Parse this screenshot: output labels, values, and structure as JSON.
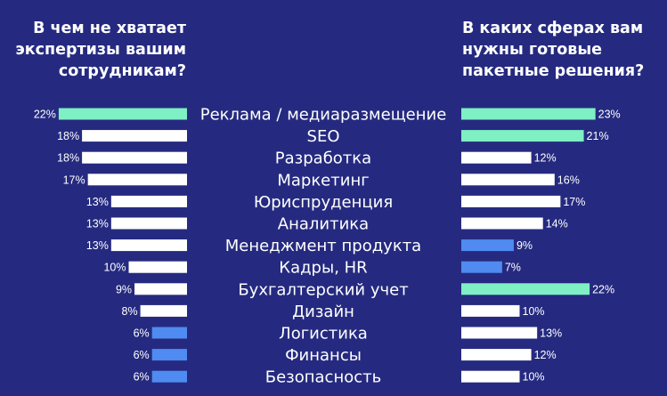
{
  "chart_data": {
    "type": "bar",
    "categories": [
      "Реклама / медиаразмещение",
      "SEO",
      "Разработка",
      "Маркетинг",
      "Юриспруденция",
      "Аналитика",
      "Менеджмент продукта",
      "Кадры, HR",
      "Бухгалтерский учет",
      "Дизайн",
      "Логистика",
      "Финансы",
      "Безопасность"
    ],
    "series": [
      {
        "title": "В чем не хватает\nэкспертизы вашим\nсотрудникам?",
        "values": [
          22,
          18,
          18,
          17,
          13,
          13,
          13,
          10,
          9,
          8,
          6,
          6,
          6
        ],
        "labels": [
          "22%",
          "18%",
          "18%",
          "17%",
          "13%",
          "13%",
          "13%",
          "10%",
          "9%",
          "8%",
          "6%",
          "6%",
          "6%"
        ],
        "colors": [
          "#7ff0c3",
          "#ffffff",
          "#ffffff",
          "#ffffff",
          "#ffffff",
          "#ffffff",
          "#ffffff",
          "#ffffff",
          "#ffffff",
          "#ffffff",
          "#4f8bf0",
          "#4f8bf0",
          "#4f8bf0"
        ]
      },
      {
        "title": "В каких сферах вам\nнужны готовые\nпакетные решения?",
        "values": [
          23,
          21,
          12,
          16,
          17,
          14,
          9,
          7,
          22,
          10,
          13,
          12,
          10
        ],
        "labels": [
          "23%",
          "21%",
          "12%",
          "16%",
          "17%",
          "14%",
          "9%",
          "7%",
          "22%",
          "10%",
          "13%",
          "12%",
          "10%"
        ],
        "colors": [
          "#7ff0c3",
          "#7ff0c3",
          "#ffffff",
          "#ffffff",
          "#ffffff",
          "#ffffff",
          "#4f8bf0",
          "#4f8bf0",
          "#7ff0c3",
          "#ffffff",
          "#ffffff",
          "#ffffff",
          "#ffffff"
        ]
      }
    ]
  },
  "colors": {
    "background": "#252a80",
    "highlight": "#7ff0c3",
    "neutral": "#ffffff",
    "low": "#4f8bf0"
  }
}
